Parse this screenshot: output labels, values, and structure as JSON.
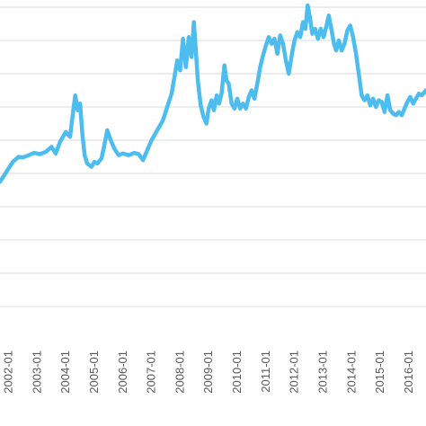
{
  "chart_data": {
    "type": "line",
    "title": "",
    "xlabel": "",
    "ylabel": "",
    "grid": true,
    "legend": "none",
    "x_tick_labels": [
      "2002-01",
      "2003-01",
      "2004-01",
      "2005-01",
      "2006-01",
      "2007-01",
      "2008-01",
      "2009-01",
      "2010-01",
      "2011-01",
      "2012-01",
      "2013-01",
      "2014-01",
      "2015-01",
      "2016-01"
    ],
    "x_range": [
      2001.7,
      2016.6
    ],
    "y_range": [
      0,
      10
    ],
    "gridlines_y": [
      1,
      2,
      3,
      4,
      5,
      6,
      7,
      8,
      9,
      10
    ],
    "series": [
      {
        "color": "#4dbdf0",
        "points": [
          [
            2001.7,
            4.75
          ],
          [
            2001.85,
            4.95
          ],
          [
            2002.0,
            5.15
          ],
          [
            2002.15,
            5.35
          ],
          [
            2002.35,
            5.5
          ],
          [
            2002.5,
            5.48
          ],
          [
            2002.7,
            5.55
          ],
          [
            2002.9,
            5.62
          ],
          [
            2003.1,
            5.58
          ],
          [
            2003.3,
            5.65
          ],
          [
            2003.5,
            5.8
          ],
          [
            2003.65,
            5.6
          ],
          [
            2003.8,
            5.95
          ],
          [
            2004.0,
            6.25
          ],
          [
            2004.15,
            6.1
          ],
          [
            2004.25,
            6.8
          ],
          [
            2004.33,
            7.35
          ],
          [
            2004.42,
            6.9
          ],
          [
            2004.5,
            7.1
          ],
          [
            2004.58,
            6.2
          ],
          [
            2004.66,
            5.55
          ],
          [
            2004.75,
            5.3
          ],
          [
            2004.9,
            5.2
          ],
          [
            2005.0,
            5.35
          ],
          [
            2005.1,
            5.3
          ],
          [
            2005.25,
            5.45
          ],
          [
            2005.35,
            5.85
          ],
          [
            2005.45,
            6.3
          ],
          [
            2005.55,
            6.05
          ],
          [
            2005.7,
            5.75
          ],
          [
            2005.85,
            5.55
          ],
          [
            2006.0,
            5.6
          ],
          [
            2006.2,
            5.55
          ],
          [
            2006.4,
            5.62
          ],
          [
            2006.55,
            5.58
          ],
          [
            2006.7,
            5.4
          ],
          [
            2006.85,
            5.7
          ],
          [
            2007.0,
            6.0
          ],
          [
            2007.2,
            6.3
          ],
          [
            2007.4,
            6.6
          ],
          [
            2007.55,
            7.0
          ],
          [
            2007.7,
            7.4
          ],
          [
            2007.8,
            7.9
          ],
          [
            2007.9,
            8.4
          ],
          [
            2008.0,
            8.1
          ],
          [
            2008.1,
            9.05
          ],
          [
            2008.2,
            8.2
          ],
          [
            2008.3,
            9.1
          ],
          [
            2008.4,
            8.5
          ],
          [
            2008.48,
            9.55
          ],
          [
            2008.55,
            8.7
          ],
          [
            2008.62,
            7.8
          ],
          [
            2008.72,
            7.05
          ],
          [
            2008.82,
            6.7
          ],
          [
            2008.92,
            6.5
          ],
          [
            2009.0,
            6.95
          ],
          [
            2009.1,
            7.2
          ],
          [
            2009.18,
            6.9
          ],
          [
            2009.28,
            7.35
          ],
          [
            2009.36,
            7.1
          ],
          [
            2009.45,
            7.4
          ],
          [
            2009.55,
            8.25
          ],
          [
            2009.62,
            7.8
          ],
          [
            2009.7,
            7.7
          ],
          [
            2009.8,
            7.1
          ],
          [
            2009.9,
            6.95
          ],
          [
            2010.0,
            7.25
          ],
          [
            2010.1,
            6.95
          ],
          [
            2010.2,
            7.1
          ],
          [
            2010.3,
            6.95
          ],
          [
            2010.4,
            7.3
          ],
          [
            2010.5,
            7.5
          ],
          [
            2010.6,
            7.25
          ],
          [
            2010.7,
            7.7
          ],
          [
            2010.8,
            8.2
          ],
          [
            2010.9,
            8.55
          ],
          [
            2011.0,
            8.85
          ],
          [
            2011.1,
            9.1
          ],
          [
            2011.2,
            8.9
          ],
          [
            2011.3,
            9.05
          ],
          [
            2011.4,
            8.6
          ],
          [
            2011.5,
            9.15
          ],
          [
            2011.6,
            8.9
          ],
          [
            2011.7,
            8.4
          ],
          [
            2011.8,
            8.0
          ],
          [
            2011.9,
            8.55
          ],
          [
            2012.0,
            9.0
          ],
          [
            2012.1,
            9.25
          ],
          [
            2012.2,
            9.1
          ],
          [
            2012.3,
            9.55
          ],
          [
            2012.38,
            9.35
          ],
          [
            2012.46,
            10.05
          ],
          [
            2012.54,
            9.7
          ],
          [
            2012.62,
            9.2
          ],
          [
            2012.72,
            9.35
          ],
          [
            2012.82,
            9.05
          ],
          [
            2012.92,
            9.35
          ],
          [
            2013.02,
            9.1
          ],
          [
            2013.12,
            9.45
          ],
          [
            2013.2,
            9.75
          ],
          [
            2013.3,
            9.3
          ],
          [
            2013.38,
            8.9
          ],
          [
            2013.46,
            8.7
          ],
          [
            2013.55,
            9.0
          ],
          [
            2013.65,
            8.7
          ],
          [
            2013.75,
            8.9
          ],
          [
            2013.85,
            9.3
          ],
          [
            2013.95,
            9.45
          ],
          [
            2014.05,
            9.1
          ],
          [
            2014.15,
            8.6
          ],
          [
            2014.25,
            8.0
          ],
          [
            2014.35,
            7.35
          ],
          [
            2014.45,
            7.2
          ],
          [
            2014.55,
            7.35
          ],
          [
            2014.65,
            7.05
          ],
          [
            2014.75,
            7.25
          ],
          [
            2014.85,
            7.0
          ],
          [
            2014.95,
            7.2
          ],
          [
            2015.05,
            7.15
          ],
          [
            2015.15,
            6.85
          ],
          [
            2015.25,
            7.35
          ],
          [
            2015.35,
            6.9
          ],
          [
            2015.45,
            6.8
          ],
          [
            2015.55,
            6.75
          ],
          [
            2015.65,
            6.85
          ],
          [
            2015.75,
            6.75
          ],
          [
            2015.85,
            6.95
          ],
          [
            2015.95,
            7.15
          ],
          [
            2016.05,
            7.3
          ],
          [
            2016.15,
            7.1
          ],
          [
            2016.25,
            7.25
          ],
          [
            2016.35,
            7.4
          ],
          [
            2016.45,
            7.35
          ],
          [
            2016.6,
            7.5
          ]
        ]
      }
    ]
  }
}
